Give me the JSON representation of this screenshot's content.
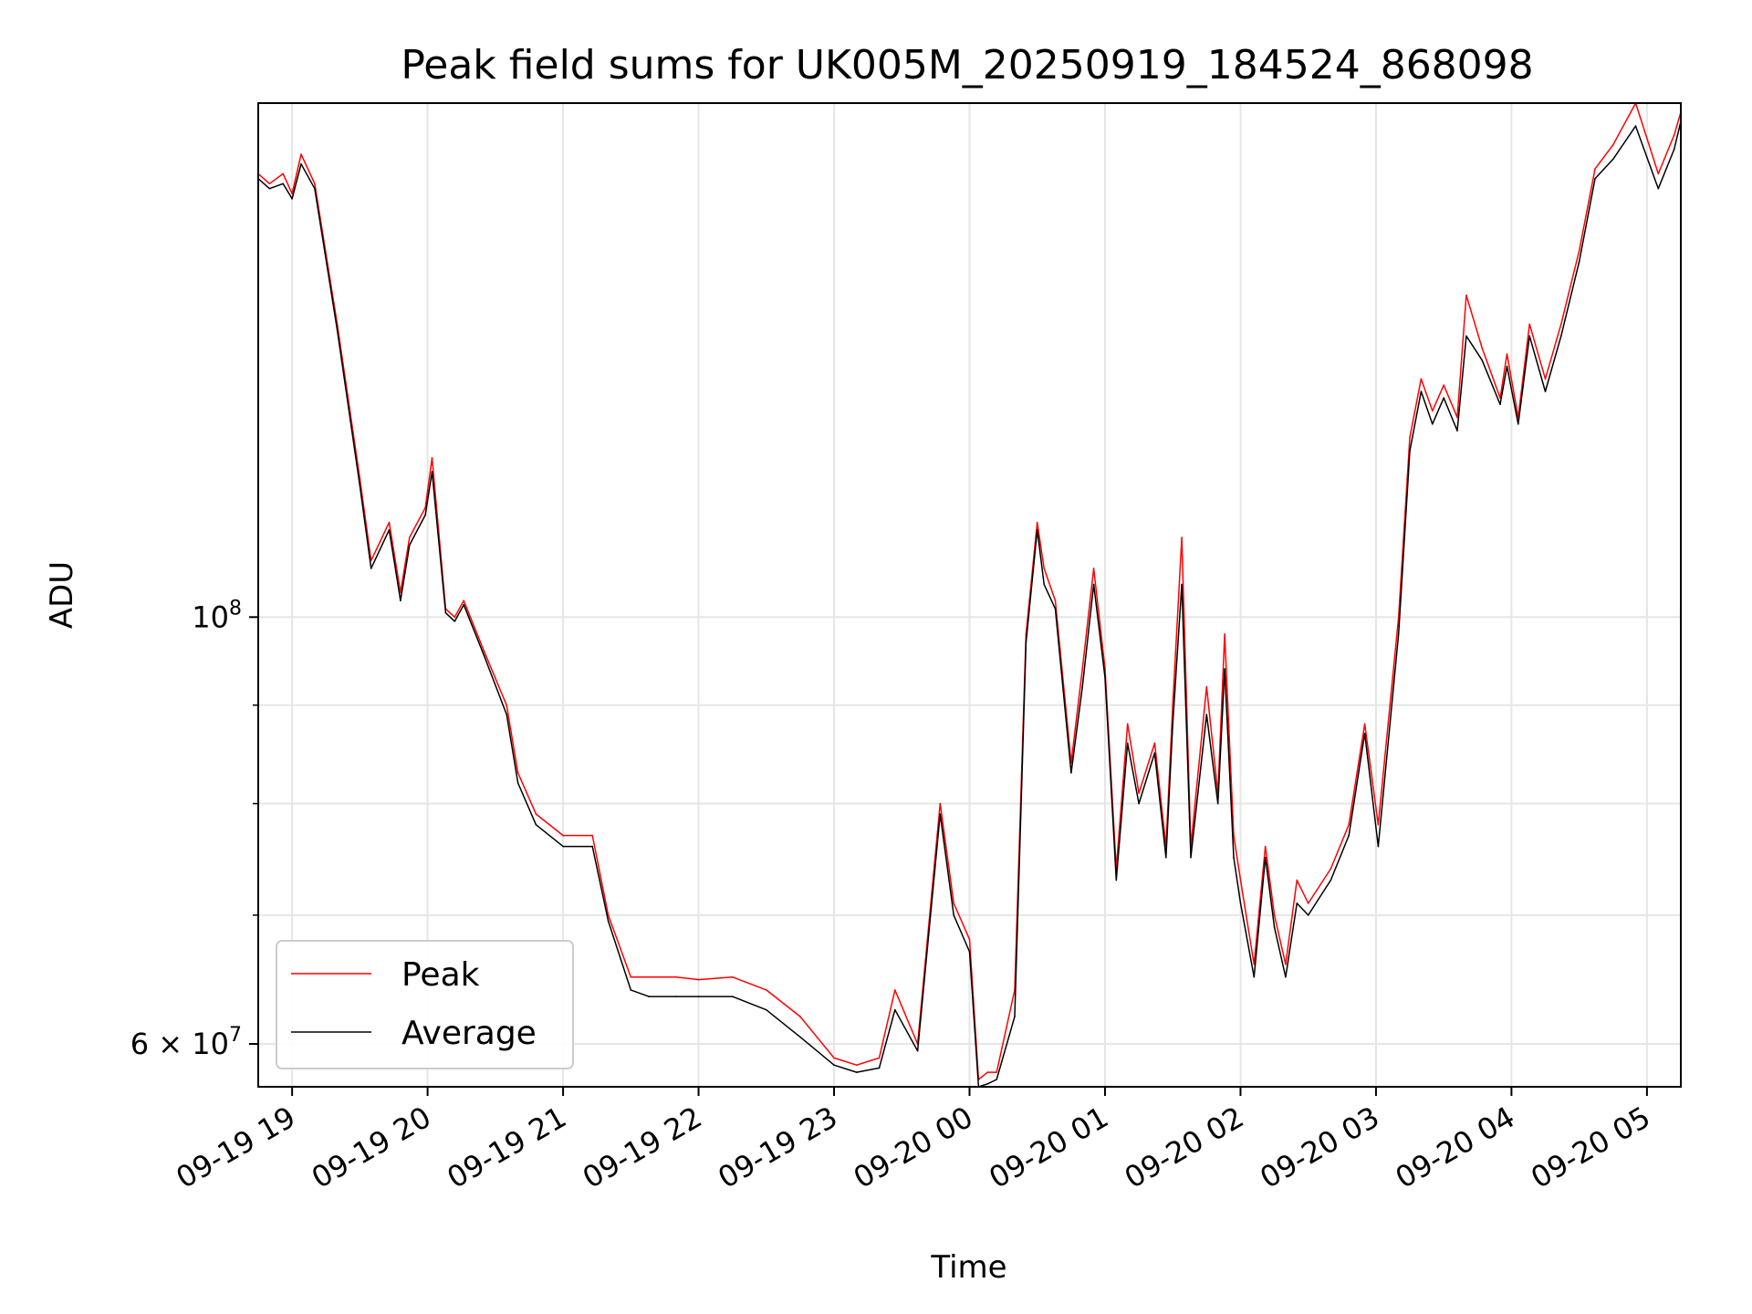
{
  "chart_data": {
    "type": "line",
    "title": "Peak field sums for UK005M_20250919_184524_868098",
    "xlabel": "Time",
    "ylabel": "ADU",
    "x_tick_labels": [
      "09-19 19",
      "09-19 20",
      "09-19 21",
      "09-19 22",
      "09-19 23",
      "09-20 00",
      "09-20 01",
      "09-20 02",
      "09-20 03",
      "09-20 04",
      "09-20 05"
    ],
    "x_tick_values": [
      "2025-09-19 19:00",
      "2025-09-19 20:00",
      "2025-09-19 21:00",
      "2025-09-19 22:00",
      "2025-09-19 23:00",
      "2025-09-20 00:00",
      "2025-09-20 01:00",
      "2025-09-20 02:00",
      "2025-09-20 03:00",
      "2025-09-20 04:00",
      "2025-09-20 05:00"
    ],
    "xlim": [
      "2025-09-19 18:45",
      "2025-09-20 05:15"
    ],
    "y_scale": "log",
    "ylim": [
      57000000,
      185000000
    ],
    "y_major_ticks": [
      {
        "value": 100000000,
        "base": "10",
        "exp": "8"
      },
      {
        "value": 60000000,
        "base": "6 × 10",
        "exp": "7"
      }
    ],
    "y_minor_gridlines": [
      70000000,
      80000000,
      90000000
    ],
    "grid": true,
    "legend": {
      "position": "lower-left",
      "entries": [
        "Peak",
        "Average"
      ]
    },
    "colors": {
      "Peak": "#ff0000",
      "Average": "#000000"
    },
    "series": [
      {
        "name": "Peak",
        "x": [
          "2025-09-19 18:45",
          "2025-09-19 18:50",
          "2025-09-19 18:56",
          "2025-09-19 19:00",
          "2025-09-19 19:04",
          "2025-09-19 19:10",
          "2025-09-19 19:20",
          "2025-09-19 19:30",
          "2025-09-19 19:35",
          "2025-09-19 19:43",
          "2025-09-19 19:48",
          "2025-09-19 19:52",
          "2025-09-19 19:59",
          "2025-09-19 20:02",
          "2025-09-19 20:08",
          "2025-09-19 20:12",
          "2025-09-19 20:16",
          "2025-09-19 20:25",
          "2025-09-19 20:35",
          "2025-09-19 20:40",
          "2025-09-19 20:48",
          "2025-09-19 21:00",
          "2025-09-19 21:13",
          "2025-09-19 21:20",
          "2025-09-19 21:30",
          "2025-09-19 21:38",
          "2025-09-19 21:50",
          "2025-09-19 22:00",
          "2025-09-19 22:15",
          "2025-09-19 22:30",
          "2025-09-19 22:45",
          "2025-09-19 23:00",
          "2025-09-19 23:10",
          "2025-09-19 23:20",
          "2025-09-19 23:27",
          "2025-09-19 23:37",
          "2025-09-19 23:47",
          "2025-09-19 23:53",
          "2025-09-20 00:00",
          "2025-09-20 00:04",
          "2025-09-20 00:08",
          "2025-09-20 00:12",
          "2025-09-20 00:20",
          "2025-09-20 00:25",
          "2025-09-20 00:30",
          "2025-09-20 00:33",
          "2025-09-20 00:38",
          "2025-09-20 00:45",
          "2025-09-20 00:50",
          "2025-09-20 00:55",
          "2025-09-20 01:00",
          "2025-09-20 01:05",
          "2025-09-20 01:10",
          "2025-09-20 01:15",
          "2025-09-20 01:22",
          "2025-09-20 01:27",
          "2025-09-20 01:30",
          "2025-09-20 01:34",
          "2025-09-20 01:38",
          "2025-09-20 01:45",
          "2025-09-20 01:50",
          "2025-09-20 01:53",
          "2025-09-20 01:57",
          "2025-09-20 02:00",
          "2025-09-20 02:06",
          "2025-09-20 02:11",
          "2025-09-20 02:15",
          "2025-09-20 02:20",
          "2025-09-20 02:25",
          "2025-09-20 02:30",
          "2025-09-20 02:40",
          "2025-09-20 02:48",
          "2025-09-20 02:55",
          "2025-09-20 03:01",
          "2025-09-20 03:10",
          "2025-09-20 03:15",
          "2025-09-20 03:20",
          "2025-09-20 03:25",
          "2025-09-20 03:30",
          "2025-09-20 03:36",
          "2025-09-20 03:40",
          "2025-09-20 03:47",
          "2025-09-20 03:55",
          "2025-09-20 03:58",
          "2025-09-20 04:03",
          "2025-09-20 04:08",
          "2025-09-20 04:15",
          "2025-09-20 04:22",
          "2025-09-20 04:30",
          "2025-09-20 04:37",
          "2025-09-20 04:45",
          "2025-09-20 04:55",
          "2025-09-20 05:05",
          "2025-09-20 05:12",
          "2025-09-20 05:15"
        ],
        "y": [
          170000000,
          168000000,
          170000000,
          166000000,
          174000000,
          168000000,
          142000000,
          118000000,
          107000000,
          112000000,
          103000000,
          110000000,
          114000000,
          121000000,
          101000000,
          100000000,
          102000000,
          96000000,
          90000000,
          83000000,
          79000000,
          77000000,
          77000000,
          70000000,
          65000000,
          65000000,
          65000000,
          64800000,
          65000000,
          64000000,
          62000000,
          59000000,
          58500000,
          59000000,
          64000000,
          60000000,
          80000000,
          71000000,
          68000000,
          57500000,
          58000000,
          58000000,
          64000000,
          98000000,
          112000000,
          106000000,
          102000000,
          84000000,
          94000000,
          106000000,
          94000000,
          74000000,
          88000000,
          81000000,
          86000000,
          76000000,
          90000000,
          110000000,
          76000000,
          92000000,
          81000000,
          98000000,
          77000000,
          73000000,
          66000000,
          76000000,
          70000000,
          66000000,
          73000000,
          71000000,
          74000000,
          78000000,
          88000000,
          78000000,
          100000000,
          124000000,
          133000000,
          128000000,
          132000000,
          127000000,
          147000000,
          138000000,
          130000000,
          137000000,
          127000000,
          142000000,
          133000000,
          142000000,
          155000000,
          171000000,
          176000000,
          185000000,
          170000000,
          178000000,
          183000000
        ]
      },
      {
        "name": "Average",
        "x": [
          "2025-09-19 18:45",
          "2025-09-19 18:50",
          "2025-09-19 18:56",
          "2025-09-19 19:00",
          "2025-09-19 19:04",
          "2025-09-19 19:10",
          "2025-09-19 19:20",
          "2025-09-19 19:30",
          "2025-09-19 19:35",
          "2025-09-19 19:43",
          "2025-09-19 19:48",
          "2025-09-19 19:52",
          "2025-09-19 19:59",
          "2025-09-19 20:02",
          "2025-09-19 20:08",
          "2025-09-19 20:12",
          "2025-09-19 20:16",
          "2025-09-19 20:25",
          "2025-09-19 20:35",
          "2025-09-19 20:40",
          "2025-09-19 20:48",
          "2025-09-19 21:00",
          "2025-09-19 21:13",
          "2025-09-19 21:20",
          "2025-09-19 21:30",
          "2025-09-19 21:38",
          "2025-09-19 21:50",
          "2025-09-19 22:00",
          "2025-09-19 22:15",
          "2025-09-19 22:30",
          "2025-09-19 22:45",
          "2025-09-19 23:00",
          "2025-09-19 23:10",
          "2025-09-19 23:20",
          "2025-09-19 23:27",
          "2025-09-19 23:37",
          "2025-09-19 23:47",
          "2025-09-19 23:53",
          "2025-09-20 00:00",
          "2025-09-20 00:04",
          "2025-09-20 00:08",
          "2025-09-20 00:12",
          "2025-09-20 00:20",
          "2025-09-20 00:25",
          "2025-09-20 00:30",
          "2025-09-20 00:33",
          "2025-09-20 00:38",
          "2025-09-20 00:45",
          "2025-09-20 00:50",
          "2025-09-20 00:55",
          "2025-09-20 01:00",
          "2025-09-20 01:05",
          "2025-09-20 01:10",
          "2025-09-20 01:15",
          "2025-09-20 01:22",
          "2025-09-20 01:27",
          "2025-09-20 01:30",
          "2025-09-20 01:34",
          "2025-09-20 01:38",
          "2025-09-20 01:45",
          "2025-09-20 01:50",
          "2025-09-20 01:53",
          "2025-09-20 01:57",
          "2025-09-20 02:00",
          "2025-09-20 02:06",
          "2025-09-20 02:11",
          "2025-09-20 02:15",
          "2025-09-20 02:20",
          "2025-09-20 02:25",
          "2025-09-20 02:30",
          "2025-09-20 02:40",
          "2025-09-20 02:48",
          "2025-09-20 02:55",
          "2025-09-20 03:01",
          "2025-09-20 03:10",
          "2025-09-20 03:15",
          "2025-09-20 03:20",
          "2025-09-20 03:25",
          "2025-09-20 03:30",
          "2025-09-20 03:36",
          "2025-09-20 03:40",
          "2025-09-20 03:47",
          "2025-09-20 03:55",
          "2025-09-20 03:58",
          "2025-09-20 04:03",
          "2025-09-20 04:08",
          "2025-09-20 04:15",
          "2025-09-20 04:22",
          "2025-09-20 04:30",
          "2025-09-20 04:37",
          "2025-09-20 04:45",
          "2025-09-20 04:55",
          "2025-09-20 05:05",
          "2025-09-20 05:12",
          "2025-09-20 05:15"
        ],
        "y": [
          169000000,
          167000000,
          168000000,
          165000000,
          172000000,
          167000000,
          141000000,
          117000000,
          106000000,
          111000000,
          102000000,
          109000000,
          113000000,
          119000000,
          100500000,
          99500000,
          101500000,
          95500000,
          89000000,
          82000000,
          78000000,
          76000000,
          76000000,
          69500000,
          64000000,
          63500000,
          63500000,
          63500000,
          63500000,
          62500000,
          60500000,
          58500000,
          58000000,
          58300000,
          62500000,
          59500000,
          79000000,
          70000000,
          67000000,
          57000000,
          57200000,
          57500000,
          62000000,
          97000000,
          111000000,
          104000000,
          101000000,
          83000000,
          92000000,
          104000000,
          93000000,
          73000000,
          86000000,
          80000000,
          85000000,
          75000000,
          88000000,
          104000000,
          75000000,
          89000000,
          80000000,
          94000000,
          75000000,
          71000000,
          65000000,
          75000000,
          69000000,
          65000000,
          71000000,
          70000000,
          73000000,
          77000000,
          87000000,
          76000000,
          98000000,
          122000000,
          131000000,
          126000000,
          130000000,
          125000000,
          140000000,
          136000000,
          129000000,
          135000000,
          126000000,
          140000000,
          131000000,
          140000000,
          153000000,
          169000000,
          173000000,
          180000000,
          167000000,
          175000000,
          181000000
        ]
      }
    ]
  }
}
